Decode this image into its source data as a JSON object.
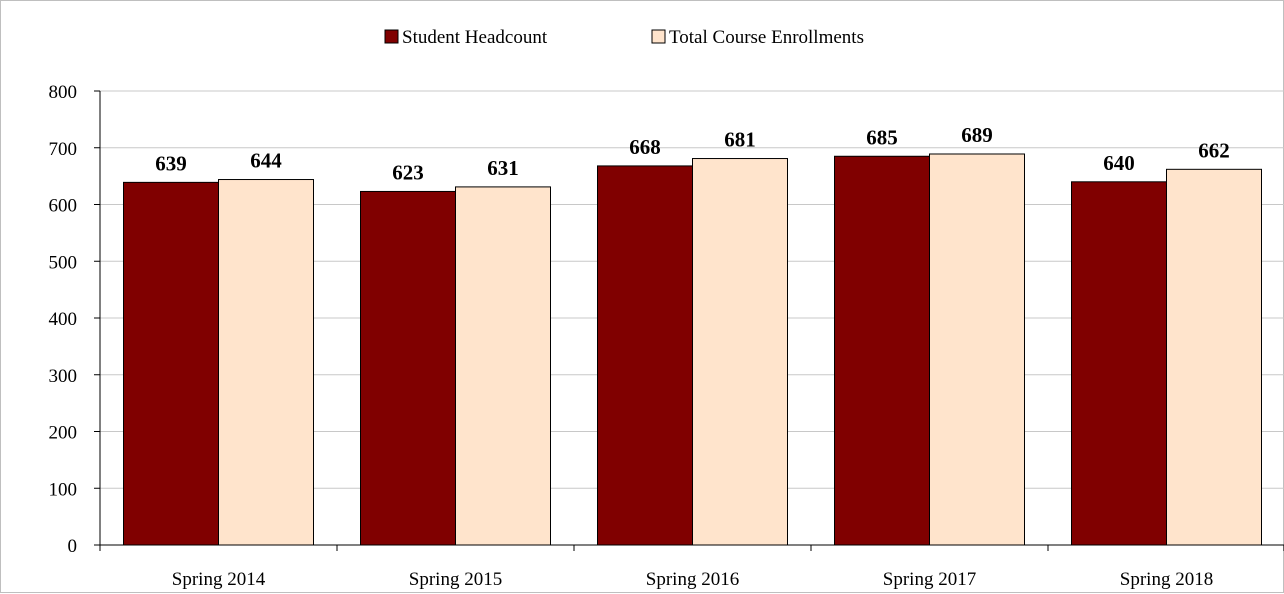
{
  "chart_data": {
    "type": "bar",
    "title": "",
    "xlabel": "",
    "ylabel": "",
    "categories": [
      "Spring 2014",
      "Spring 2015",
      "Spring 2016",
      "Spring 2017",
      "Spring 2018"
    ],
    "series": [
      {
        "name": "Student Headcount",
        "values": [
          639,
          623,
          668,
          685,
          640
        ],
        "color": "#800000"
      },
      {
        "name": "Total Course Enrollments",
        "values": [
          644,
          631,
          681,
          689,
          662
        ],
        "color": "#FFE4CC"
      }
    ],
    "ylim": [
      0,
      800
    ],
    "yticks": [
      0,
      100,
      200,
      300,
      400,
      500,
      600,
      700,
      800
    ],
    "grid": true,
    "legend_position": "top"
  }
}
